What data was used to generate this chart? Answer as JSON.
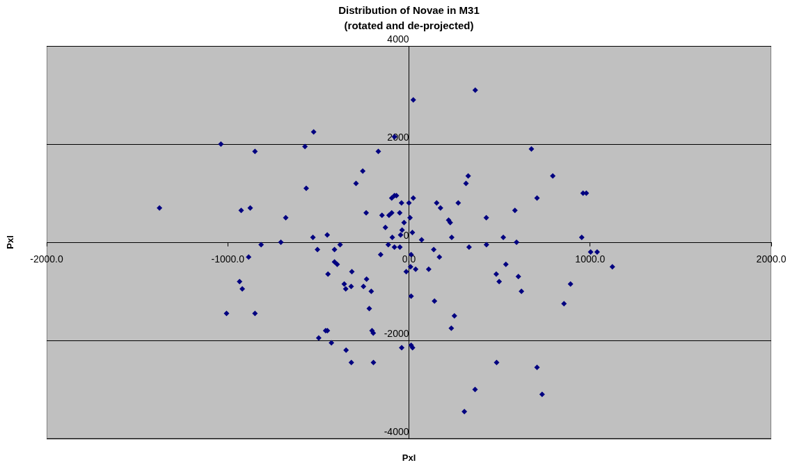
{
  "chart_data": {
    "type": "scatter",
    "title": "Distribution of Novae in M31\n(rotated and de-projected)",
    "xlabel": "Pxl",
    "ylabel": "Pxl",
    "xlim": [
      -2000,
      2000
    ],
    "ylim": [
      -4000,
      4000
    ],
    "xticks": [
      {
        "value": -2000,
        "label": "-2000.0"
      },
      {
        "value": -1000,
        "label": "-1000.0"
      },
      {
        "value": 0,
        "label": "0.0"
      },
      {
        "value": 1000,
        "label": "1000.0"
      },
      {
        "value": 2000,
        "label": "2000.0"
      }
    ],
    "yticks": [
      -4000,
      -2000,
      0,
      2000,
      4000
    ],
    "grid": "y",
    "legend": false,
    "marker": "diamond",
    "series": [
      {
        "color": "#000080",
        "x": [
          -1377,
          -1038,
          -850,
          -926,
          -876,
          -680,
          -574,
          -526,
          -567,
          -530,
          -451,
          -292,
          -255,
          -236,
          -169,
          -80,
          -149,
          -110,
          -95,
          -130,
          -92,
          -80,
          -69,
          -95,
          -41,
          -51,
          -27,
          -38,
          -46,
          0,
          6,
          -707,
          -816,
          -380,
          -114,
          -885,
          -505,
          -411,
          -156,
          -80,
          -50,
          -411,
          -396,
          -447,
          -315,
          -234,
          -15,
          -935,
          -920,
          -357,
          -349,
          -319,
          -251,
          -208,
          12,
          -219,
          -1007,
          -850,
          -460,
          -450,
          -204,
          -197,
          -498,
          -428,
          -40,
          12,
          20,
          -347,
          -318,
          -196,
          70,
          236,
          521,
          594,
          954,
          137,
          332,
          428,
          12,
          168,
          9,
          37,
          109,
          535,
          482,
          498,
          604,
          621,
          1003,
          1039,
          1123,
          892,
          856,
          141,
          251,
          234,
          484,
          707,
          365,
          735,
          306,
          24,
          366,
          676,
          794,
          327,
          315,
          961,
          979,
          24,
          153,
          174,
          272,
          707,
          585,
          427,
          219,
          228,
          19
        ],
        "values": [
          700,
          2000,
          1850,
          650,
          700,
          500,
          1950,
          2250,
          1100,
          100,
          150,
          1200,
          1450,
          600,
          1850,
          2150,
          550,
          550,
          600,
          300,
          100,
          950,
          950,
          900,
          800,
          600,
          400,
          250,
          150,
          800,
          500,
          0,
          -50,
          -50,
          -50,
          -300,
          -150,
          -150,
          -250,
          -100,
          -100,
          -400,
          -450,
          -650,
          -600,
          -750,
          -600,
          -800,
          -950,
          -850,
          -950,
          -900,
          -900,
          -1000,
          -1100,
          -1350,
          -1450,
          -1450,
          -1800,
          -1800,
          -1800,
          -1850,
          -1950,
          -2050,
          -2150,
          -2100,
          -2150,
          -2200,
          -2450,
          -2450,
          50,
          100,
          100,
          0,
          100,
          -150,
          -100,
          -50,
          -250,
          -300,
          -500,
          -550,
          -550,
          -450,
          -650,
          -800,
          -700,
          -1000,
          -200,
          -200,
          -500,
          -850,
          -1250,
          -1200,
          -1500,
          -1750,
          -2450,
          -2550,
          -3000,
          -3100,
          -3450,
          2900,
          3100,
          1900,
          1350,
          1350,
          1200,
          1000,
          1000,
          900,
          800,
          700,
          800,
          900,
          650,
          500,
          450,
          400,
          200
        ]
      }
    ]
  }
}
